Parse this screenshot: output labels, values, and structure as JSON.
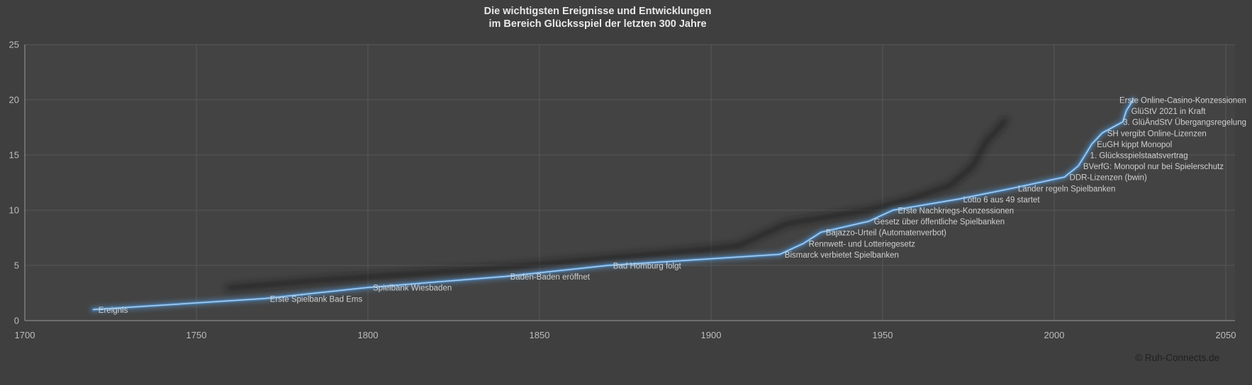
{
  "title": {
    "line1": "Die wichtigsten Ereignisse und Entwicklungen",
    "line2": "im Bereich Glücksspiel der letzten 300 Jahre"
  },
  "footer": {
    "copyright": "© Ruh-Connects.de"
  },
  "chart_data": {
    "type": "line",
    "title": "Die wichtigsten Ereignisse und Entwicklungen im Bereich Glücksspiel der letzten 300 Jahre",
    "series_name": "Ereignis",
    "xlabel": "",
    "ylabel": "",
    "xlim": [
      1700,
      2050
    ],
    "ylim": [
      0,
      25
    ],
    "x_ticks": [
      1700,
      1750,
      1800,
      1850,
      1900,
      1950,
      2000,
      2050
    ],
    "y_ticks": [
      0,
      5,
      10,
      15,
      20,
      25
    ],
    "grid": true,
    "legend": false,
    "events": [
      {
        "label": "Ereignis",
        "year": 1720,
        "value": 1
      },
      {
        "label": "Erste Spielbank Bad Ems",
        "year": 1770,
        "value": 2
      },
      {
        "label": "Spielbank Wiesbaden",
        "year": 1800,
        "value": 3
      },
      {
        "label": "Baden-Baden eröffnet",
        "year": 1840,
        "value": 4
      },
      {
        "label": "Bad Homburg folgt",
        "year": 1870,
        "value": 5
      },
      {
        "label": "Bismarck verbietet Spielbanken",
        "year": 1920,
        "value": 6
      },
      {
        "label": "Rennwett- und Lotteriegesetz",
        "year": 1927,
        "value": 7
      },
      {
        "label": "Bajazzo-Urteil (Automatenverbot)",
        "year": 1932,
        "value": 8
      },
      {
        "label": "Gesetz über öffentliche Spielbanken",
        "year": 1946,
        "value": 9
      },
      {
        "label": "Erste Nachkriegs-Konzessionen",
        "year": 1953,
        "value": 10
      },
      {
        "label": "Lotto 6 aus 49 startet",
        "year": 1972,
        "value": 11
      },
      {
        "label": "Länder regeln Spielbanken",
        "year": 1988,
        "value": 12
      },
      {
        "label": "DDR-Lizenzen (bwin)",
        "year": 2003,
        "value": 13
      },
      {
        "label": "BVerfG: Monopol nur bei Spielerschutz",
        "year": 2007,
        "value": 14
      },
      {
        "label": "1. Glücksspielstaatsvertrag",
        "year": 2009,
        "value": 15
      },
      {
        "label": "EuGH kippt Monopol",
        "year": 2011,
        "value": 16
      },
      {
        "label": "SH vergibt Online-Lizenzen",
        "year": 2014,
        "value": 17
      },
      {
        "label": "3. GlüÄndStV Übergangsregelung",
        "year": 2020,
        "value": 18
      },
      {
        "label": "GlüStV 2021 in Kraft",
        "year": 2021,
        "value": 19
      },
      {
        "label": "Erste Online-Casino-Konzessionen",
        "year": 2023,
        "value": 20
      }
    ],
    "colors": {
      "background": "#3f3f3f",
      "plot_background": "#434343",
      "gridline": "#575757",
      "axis": "#9a9a9a",
      "line": "#5b9bd5",
      "line_glow": "#4a86c0",
      "line_highlight": "#aed0ee",
      "label_text": "#d0d0d0",
      "tick_text": "#bdbdbd",
      "title_text": "#e8e8e8",
      "copyright_text": "#1f1f1f",
      "shadow": "#141414"
    }
  }
}
